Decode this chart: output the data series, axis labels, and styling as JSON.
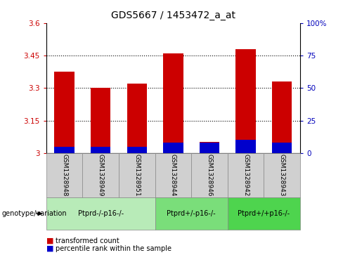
{
  "title": "GDS5667 / 1453472_a_at",
  "samples": [
    "GSM1328948",
    "GSM1328949",
    "GSM1328951",
    "GSM1328944",
    "GSM1328946",
    "GSM1328942",
    "GSM1328943"
  ],
  "red_values": [
    3.375,
    3.3,
    3.32,
    3.46,
    3.05,
    3.48,
    3.33
  ],
  "blue_pct": [
    5,
    5,
    5,
    8,
    8,
    10,
    8
  ],
  "ylim_left": [
    3.0,
    3.6
  ],
  "ylim_right": [
    0,
    100
  ],
  "yticks_left": [
    3.0,
    3.15,
    3.3,
    3.45,
    3.6
  ],
  "yticks_right": [
    0,
    25,
    50,
    75,
    100
  ],
  "ytick_labels_left": [
    "3",
    "3.15",
    "3.3",
    "3.45",
    "3.6"
  ],
  "ytick_labels_right": [
    "0",
    "25",
    "50",
    "75",
    "100%"
  ],
  "groups": [
    {
      "label": "Ptprd-/-p16-/-",
      "start": 0,
      "end": 3,
      "color": "#b8ebb8"
    },
    {
      "label": "Ptprd+/-p16-/-",
      "start": 3,
      "end": 5,
      "color": "#7ade7a"
    },
    {
      "label": "Ptprd+/+p16-/-",
      "start": 5,
      "end": 7,
      "color": "#4ed44e"
    }
  ],
  "legend_items": [
    {
      "label": "transformed count",
      "color": "#cc0000"
    },
    {
      "label": "percentile rank within the sample",
      "color": "#0000cc"
    }
  ],
  "bar_width": 0.55,
  "red_color": "#cc0000",
  "blue_color": "#0000cc",
  "left_tick_color": "#cc0000",
  "right_tick_color": "#0000bb",
  "gray_bg": "#d0d0d0",
  "gray_border": "#888888",
  "genotype_label": "genotype/variation"
}
